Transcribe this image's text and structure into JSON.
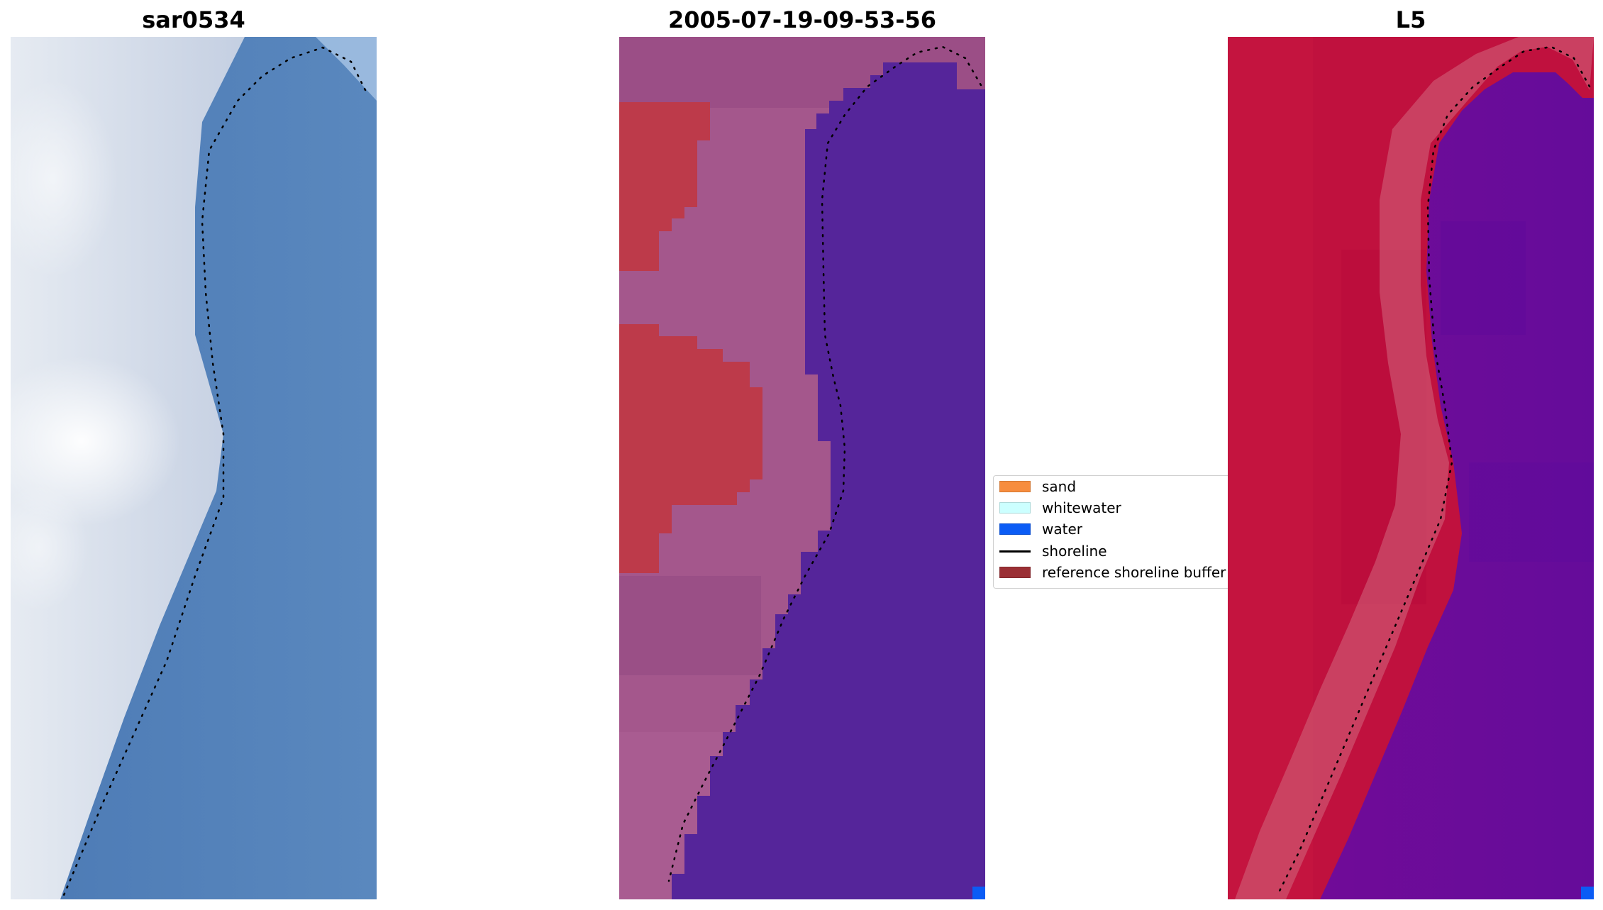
{
  "panels": [
    {
      "title": "sar0534"
    },
    {
      "title": "2005-07-19-09-53-56"
    },
    {
      "title": "L5"
    }
  ],
  "legend": {
    "items": [
      {
        "label": "sand",
        "color": "#f78d3e",
        "kind": "patch"
      },
      {
        "label": "whitewater",
        "color": "#ccffff",
        "kind": "patch"
      },
      {
        "label": "water",
        "color": "#0b5cf5",
        "kind": "patch"
      },
      {
        "label": "shoreline",
        "color": "#000000",
        "kind": "line"
      },
      {
        "label": "reference shoreline buffer",
        "color": "#9b2f35",
        "kind": "patch"
      }
    ]
  },
  "colors": {
    "rgb_land": "#d9e0ec",
    "rgb_water": "#4f7fb8",
    "class_land": "#a4578c",
    "class_buffer": "#bd3a4a",
    "class_water": "#55259a",
    "class_water_pixel": "#0b5cf5",
    "index_land": "#c0113e",
    "index_water": "#6a0a9a"
  }
}
